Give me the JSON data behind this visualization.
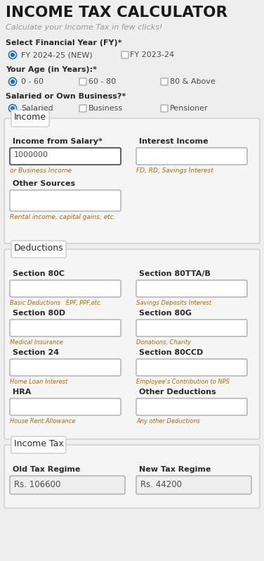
{
  "title": "INCOME TAX CALCULATOR",
  "subtitle": "Calculate your Income Tax in few clicks!",
  "bg_color": "#eeeeee",
  "title_color": "#1a1a1a",
  "subtitle_color": "#999999",
  "label_color": "#4a4a4a",
  "label_bold_color": "#2a2a2a",
  "red_color": "#cc0000",
  "orange_color": "#b36a00",
  "input_bg": "#ffffff",
  "input_border": "#aaaaaa",
  "filled_input_bg": "#eeeeee",
  "radio_fill": "#1a6fcc",
  "radio_border": "#1a6fcc",
  "section_bg": "#f5f5f5",
  "section_border": "#cccccc",
  "fy_label": "Select Financial Year (FY)*",
  "age_label": "Your Age (in Years):*",
  "employment_label": "Salaried or Own Business?*",
  "fy_options": [
    "FY 2024-25 (NEW)",
    "FY 2023-24"
  ],
  "age_options": [
    "0 - 60",
    "60 - 80",
    "80 & Above"
  ],
  "employment_options": [
    "Salaried",
    "Business",
    "Pensioner"
  ],
  "income_section_label": "Income",
  "salary_label": "Income from Salary*",
  "salary_value": "1000000",
  "salary_hint": "or Business Income",
  "interest_label": "Interest Income",
  "interest_hint": "FD, RD, Savings Interest",
  "other_label": "Other Sources",
  "other_hint": "Rental income, capital gains, etc.",
  "deductions_section_label": "Deductions",
  "ded_left_labels": [
    "Section 80C",
    "Section 80D",
    "Section 24",
    "HRA"
  ],
  "ded_left_hints": [
    "Basic Deductions   EPF, PPF,etc.",
    "Medical Insurance",
    "Home Loan Interest",
    "House Rent Allowance"
  ],
  "ded_right_labels": [
    "Section 80TTA/B",
    "Section 80G",
    "Section 80CCD",
    "Other Deductions"
  ],
  "ded_right_hints": [
    "Savings Deposits Interest",
    "Donations, Charity",
    "Employee's Contribution to NPS",
    "Any other Deductions"
  ],
  "tax_section_label": "Income Tax",
  "old_regime_label": "Old Tax Regime",
  "old_regime_value": "Rs. 106600",
  "new_regime_label": "New Tax Regime",
  "new_regime_value": "Rs. 44200"
}
